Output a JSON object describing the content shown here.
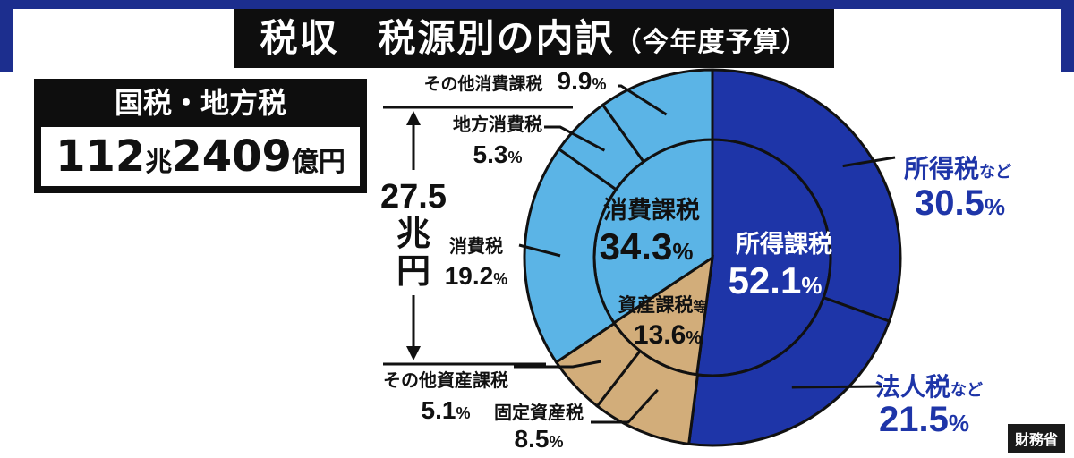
{
  "title": {
    "main": "税収　税源別の内訳",
    "sub": "（今年度予算）"
  },
  "total": {
    "label": "国税・地方税",
    "value_parts": [
      "112",
      "兆",
      "2409",
      "億円"
    ]
  },
  "bracket": {
    "value": "27.5",
    "unit1": "兆",
    "unit2": "円"
  },
  "source": "財務省",
  "colors": {
    "income": "#1e35a8",
    "consumption": "#5bb4e6",
    "asset": "#d2ad7a",
    "stroke": "#111111",
    "blueText": "#1e35a8"
  },
  "chart_data": {
    "type": "pie",
    "inner": [
      {
        "name": "所得課税",
        "value": 52.1,
        "label": "52.1"
      },
      {
        "name": "資産課税等",
        "value": 13.6,
        "label": "13.6"
      },
      {
        "name": "消費課税",
        "value": 34.3,
        "label": "34.3"
      }
    ],
    "outer": [
      {
        "name": "所得税",
        "suffix": "など",
        "value": 30.5,
        "label": "30.5"
      },
      {
        "name": "法人税",
        "suffix": "など",
        "value": 21.5,
        "label": "21.5"
      },
      {
        "name": "固定資産税",
        "suffix": "",
        "value": 8.5,
        "label": "8.5"
      },
      {
        "name": "その他資産課税",
        "suffix": "",
        "value": 5.1,
        "label": "5.1"
      },
      {
        "name": "消費税",
        "suffix": "",
        "value": 19.2,
        "label": "19.2"
      },
      {
        "name": "地方消費税",
        "suffix": "",
        "value": 5.3,
        "label": "5.3"
      },
      {
        "name": "その他消費課税",
        "suffix": "",
        "value": 9.9,
        "label": "9.9"
      }
    ],
    "unit": "%"
  }
}
